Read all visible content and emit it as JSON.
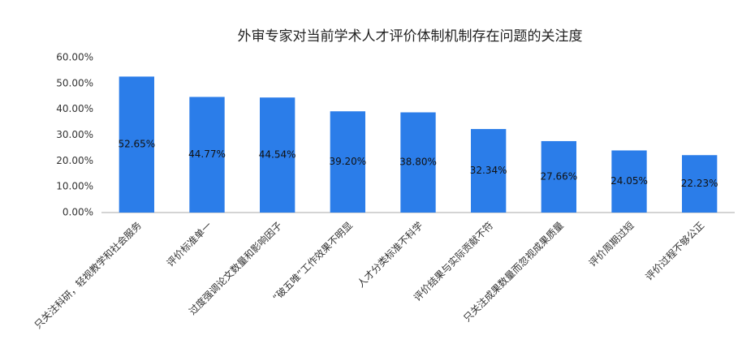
{
  "chart_data": {
    "type": "bar",
    "title": "外审专家对当前学术人才评价体制机制存在问题的关注度",
    "categories": [
      "只关注科研，轻视教学和社会服务",
      "评价标准单一",
      "过度强调论文数量和影响因子",
      "“破五唯”工作效果不明显",
      "人才分类标准不科学",
      "评价结果与实际贡献不符",
      "只关注成果数量而忽视成果质量",
      "评价周期过短",
      "评价过程不够公正"
    ],
    "values": [
      52.65,
      44.77,
      44.54,
      39.2,
      38.8,
      32.34,
      27.66,
      24.05,
      22.23
    ],
    "value_labels": [
      "52.65%",
      "44.77%",
      "44.54%",
      "39.20%",
      "38.80%",
      "32.34%",
      "27.66%",
      "24.05%",
      "22.23%"
    ],
    "color": "#2b7de9",
    "ylim": [
      0,
      60
    ],
    "yticks": [
      {
        "value": 0,
        "label": "0.00%"
      },
      {
        "value": 10,
        "label": "10.00%"
      },
      {
        "value": 20,
        "label": "20.00%"
      },
      {
        "value": 30,
        "label": "30.00%"
      },
      {
        "value": 40,
        "label": "40.00%"
      },
      {
        "value": 50,
        "label": "50.00%"
      },
      {
        "value": 60,
        "label": "60.00%"
      }
    ],
    "grid": false
  }
}
